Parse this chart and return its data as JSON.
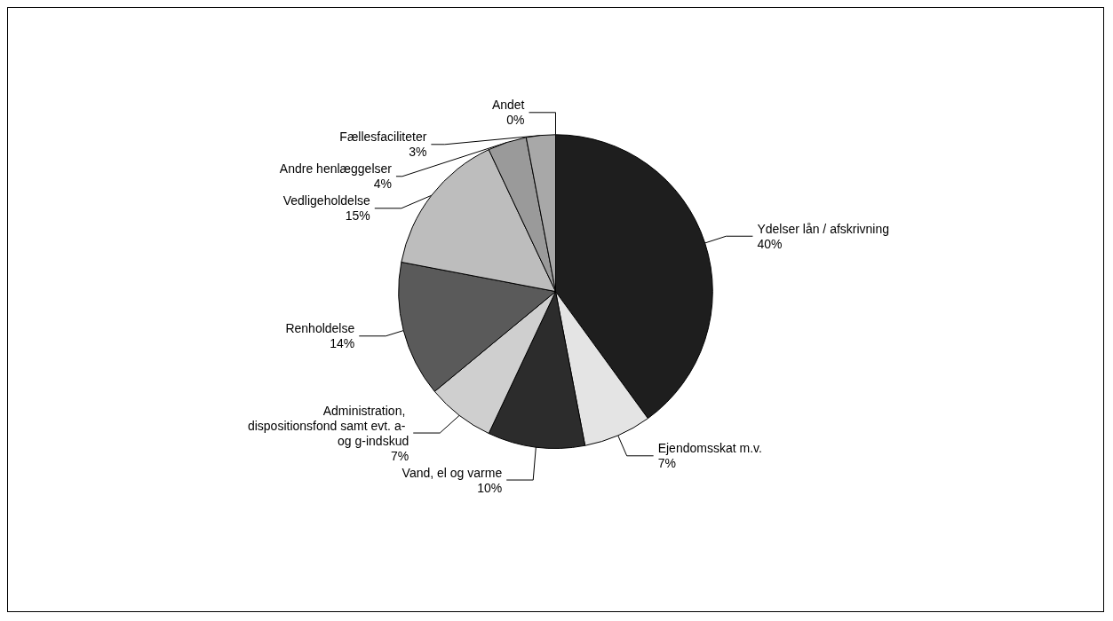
{
  "chart_data": {
    "type": "pie",
    "categories": [
      "Ydelser lån / afskrivning",
      "Ejendomsskat m.v.",
      "Vand, el og varme",
      "Administration, dispositionsfond samt evt. a- og g-indskud",
      "Renholdelse",
      "Vedligeholdelse",
      "Andre henlæggelser",
      "Fællesfaciliteter",
      "Andet"
    ],
    "values": [
      40,
      7,
      10,
      7,
      14,
      15,
      4,
      3,
      0
    ],
    "colors": [
      "#1e1e1e",
      "#e4e4e4",
      "#2c2c2c",
      "#cfcfcf",
      "#5a5a5a",
      "#bdbdbd",
      "#9a9a9a",
      "#a8a8a8",
      "#ffffff"
    ],
    "value_labels": [
      "40%",
      "7%",
      "10%",
      "7%",
      "14%",
      "15%",
      "4%",
      "3%",
      "0%"
    ],
    "legend": false
  }
}
